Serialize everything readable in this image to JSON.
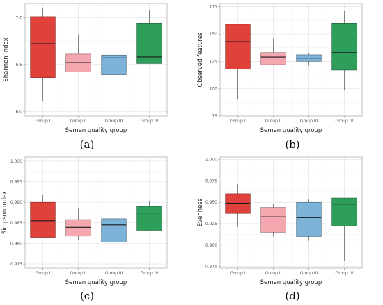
{
  "chart_data": [
    {
      "type": "box",
      "panel_label": "(a)",
      "xlabel": "Semen quality group",
      "ylabel": "Shannon index",
      "categories": [
        "Group I",
        "Group II",
        "Group III",
        "Group IV"
      ],
      "ylim": [
        5.95,
        7.15
      ],
      "yticks": [
        "6.0",
        "6.5",
        "7.0"
      ],
      "ytick_values": [
        6.0,
        6.5,
        7.0
      ],
      "grid": true,
      "boxes": [
        {
          "whisker_low": 6.11,
          "q1": 6.36,
          "median": 6.72,
          "q3": 7.01,
          "whisker_high": 7.1,
          "color": "#E0413A"
        },
        {
          "whisker_low": 6.42,
          "q1": 6.42,
          "median": 6.52,
          "q3": 6.61,
          "whisker_high": 6.82,
          "color": "#F5A7B0"
        },
        {
          "whisker_low": 6.33,
          "q1": 6.39,
          "median": 6.57,
          "q3": 6.6,
          "whisker_high": 6.62,
          "color": "#7DB3D9"
        },
        {
          "whisker_low": 6.51,
          "q1": 6.51,
          "median": 6.58,
          "q3": 6.94,
          "whisker_high": 7.08,
          "color": "#2E9E5B"
        }
      ]
    },
    {
      "type": "box",
      "panel_label": "(b)",
      "xlabel": "Semen quality group",
      "ylabel": "Observed features",
      "categories": [
        "Group I",
        "Group II",
        "Group III",
        "Group IV"
      ],
      "ylim": [
        75,
        178
      ],
      "yticks": [
        "75",
        "100",
        "125",
        "150",
        "175"
      ],
      "ytick_values": [
        75,
        100,
        125,
        150,
        175
      ],
      "grid": true,
      "boxes": [
        {
          "whisker_low": 90,
          "q1": 118,
          "median": 143,
          "q3": 159,
          "whisker_high": 159,
          "color": "#E0413A"
        },
        {
          "whisker_low": 122,
          "q1": 122,
          "median": 129,
          "q3": 133,
          "whisker_high": 146,
          "color": "#F5A7B0"
        },
        {
          "whisker_low": 121,
          "q1": 125,
          "median": 128,
          "q3": 131,
          "whisker_high": 133,
          "color": "#7DB3D9"
        },
        {
          "whisker_low": 99,
          "q1": 117,
          "median": 133,
          "q3": 160,
          "whisker_high": 171,
          "color": "#2E9E5B"
        }
      ]
    },
    {
      "type": "box",
      "panel_label": "(c)",
      "xlabel": "Semen quality group",
      "ylabel": "Simpson index",
      "categories": [
        "Group I",
        "Group II",
        "Group III",
        "Group IV"
      ],
      "ylim": [
        0.974,
        1.001
      ],
      "yticks": [
        "0.975",
        "0.980",
        "0.985",
        "0.990",
        "0.995",
        "1.000"
      ],
      "ytick_values": [
        0.975,
        0.98,
        0.985,
        0.99,
        0.995,
        1.0
      ],
      "grid": true,
      "boxes": [
        {
          "whisker_low": 0.9815,
          "q1": 0.9815,
          "median": 0.9855,
          "q3": 0.99,
          "whisker_high": 0.9917,
          "color": "#E0413A"
        },
        {
          "whisker_low": 0.9808,
          "q1": 0.9818,
          "median": 0.9839,
          "q3": 0.9858,
          "whisker_high": 0.9885,
          "color": "#F5A7B0"
        },
        {
          "whisker_low": 0.979,
          "q1": 0.9803,
          "median": 0.9845,
          "q3": 0.986,
          "whisker_high": 0.9873,
          "color": "#7DB3D9"
        },
        {
          "whisker_low": 0.9832,
          "q1": 0.9832,
          "median": 0.9874,
          "q3": 0.989,
          "whisker_high": 0.9902,
          "color": "#2E9E5B"
        }
      ]
    },
    {
      "type": "box",
      "panel_label": "(d)",
      "xlabel": "Semen quality group",
      "ylabel": "Evenness",
      "categories": [
        "Group I",
        "Group II",
        "Group III",
        "Group IV"
      ],
      "ylim": [
        0.873,
        1.003
      ],
      "yticks": [
        "0.875",
        "0.900",
        "0.925",
        "0.950",
        "0.975",
        "1.000"
      ],
      "ytick_values": [
        0.875,
        0.9,
        0.925,
        0.95,
        0.975,
        1.0
      ],
      "grid": true,
      "boxes": [
        {
          "whisker_low": 0.921,
          "q1": 0.937,
          "median": 0.949,
          "q3": 0.96,
          "whisker_high": 0.971,
          "color": "#E0413A"
        },
        {
          "whisker_low": 0.91,
          "q1": 0.915,
          "median": 0.933,
          "q3": 0.944,
          "whisker_high": 0.948,
          "color": "#F5A7B0"
        },
        {
          "whisker_low": 0.905,
          "q1": 0.91,
          "median": 0.932,
          "q3": 0.95,
          "whisker_high": 0.954,
          "color": "#7DB3D9"
        },
        {
          "whisker_low": 0.882,
          "q1": 0.922,
          "median": 0.948,
          "q3": 0.955,
          "whisker_high": 0.955,
          "color": "#2E9E5B"
        }
      ]
    }
  ]
}
